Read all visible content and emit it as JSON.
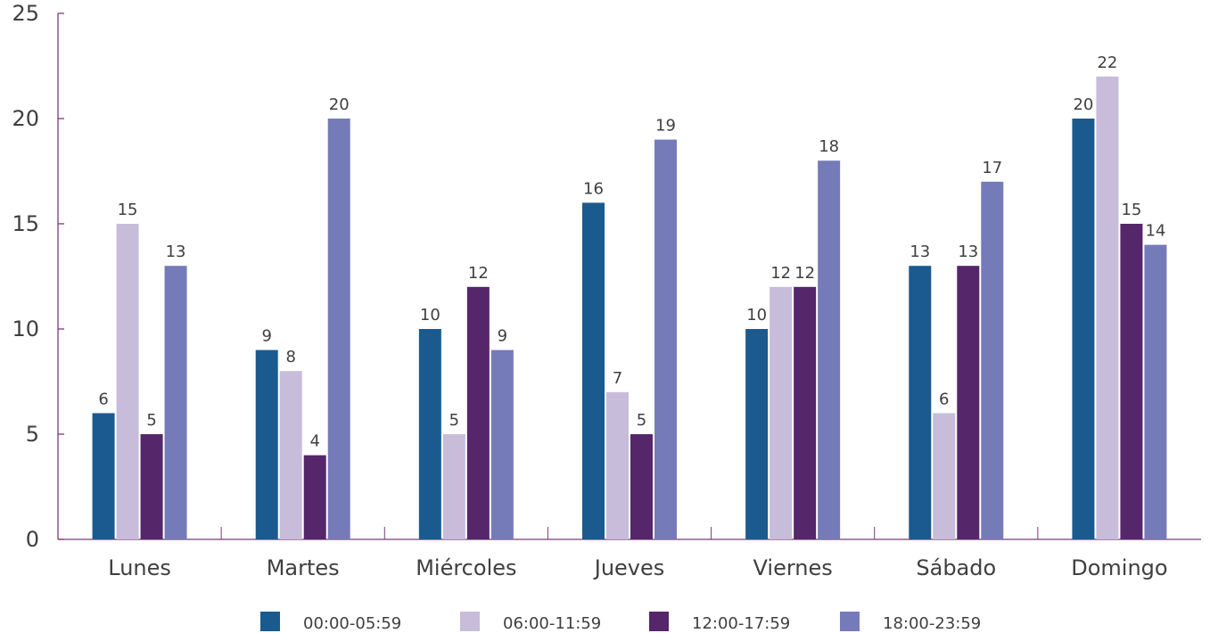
{
  "chart_data": {
    "type": "bar",
    "categories": [
      "Lunes",
      "Martes",
      "Miércoles",
      "Jueves",
      "Viernes",
      "Sábado",
      "Domingo"
    ],
    "series": [
      {
        "name": "00:00-05:59",
        "color": "#1b5a8f",
        "values": [
          6,
          9,
          10,
          16,
          10,
          13,
          20
        ]
      },
      {
        "name": "06:00-11:59",
        "color": "#c8bcdb",
        "values": [
          15,
          8,
          5,
          7,
          12,
          6,
          22
        ]
      },
      {
        "name": "12:00-17:59",
        "color": "#55266a",
        "values": [
          5,
          4,
          12,
          5,
          12,
          13,
          15
        ]
      },
      {
        "name": "18:00-23:59",
        "color": "#757bb8",
        "values": [
          13,
          20,
          9,
          19,
          18,
          17,
          14
        ]
      }
    ],
    "yticks": [
      "0",
      "5",
      "10",
      "15",
      "20",
      "25"
    ],
    "ylim": [
      0,
      25
    ],
    "grid": false,
    "legend_position": "bottom",
    "axis_color": "#7a3c7a"
  }
}
